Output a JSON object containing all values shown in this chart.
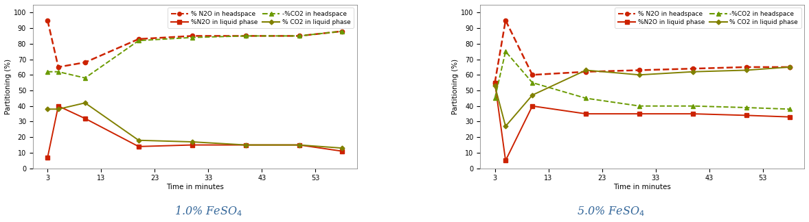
{
  "chart1": {
    "title": "1.0% FeSO$_4$",
    "x": [
      3,
      5,
      10,
      20,
      30,
      40,
      50,
      58
    ],
    "x_ticks": [
      3,
      13,
      23,
      33,
      43,
      53
    ],
    "x_ticklabels": [
      "3",
      "13",
      "23",
      "33",
      "43",
      "53"
    ],
    "n2o_head": [
      95,
      65,
      68,
      83,
      85,
      85,
      85,
      88
    ],
    "n2o_liq": [
      7,
      40,
      32,
      14,
      15,
      15,
      15,
      11
    ],
    "co2_head": [
      62,
      62,
      58,
      82,
      84,
      85,
      85,
      88
    ],
    "co2_liq": [
      38,
      38,
      42,
      18,
      17,
      15,
      15,
      13
    ]
  },
  "chart2": {
    "title": "5.0% FeSO$_4$",
    "x": [
      3,
      5,
      10,
      20,
      30,
      40,
      50,
      58
    ],
    "x_ticks": [
      3,
      13,
      23,
      33,
      43,
      53
    ],
    "x_ticklabels": [
      "3",
      "13",
      "23",
      "33",
      "43",
      "53"
    ],
    "n2o_head": [
      55,
      95,
      60,
      62,
      63,
      64,
      65,
      65
    ],
    "n2o_liq": [
      55,
      5,
      40,
      35,
      35,
      35,
      34,
      33
    ],
    "co2_head": [
      45,
      75,
      55,
      45,
      40,
      40,
      39,
      38
    ],
    "co2_liq": [
      53,
      27,
      47,
      63,
      60,
      62,
      63,
      65
    ]
  },
  "color_red": "#cc2200",
  "color_green": "#6a9a00",
  "color_olive": "#808000",
  "ylabel": "Partitioning (%)",
  "xlabel": "Time in minutes",
  "ylim": [
    0,
    105
  ],
  "yticks": [
    0,
    10,
    20,
    30,
    40,
    50,
    60,
    70,
    80,
    90,
    100
  ],
  "title_color": "#336699",
  "background": "#ffffff",
  "leg1_n2o_head": "% N2O in headspace",
  "leg1_n2o_liq": "%N2O in liquid phase",
  "leg1_co2_head": "-%CO2 in headspace",
  "leg1_co2_liq": "% CO2 in liquid phase",
  "leg2_n2o_head": "% N2O in headspace",
  "leg2_n2o_liq": "%N2O in liquid phase",
  "leg2_co2_head": "-%CO2 in headspace",
  "leg2_co2_liq": "% CO2 in liquid phase"
}
